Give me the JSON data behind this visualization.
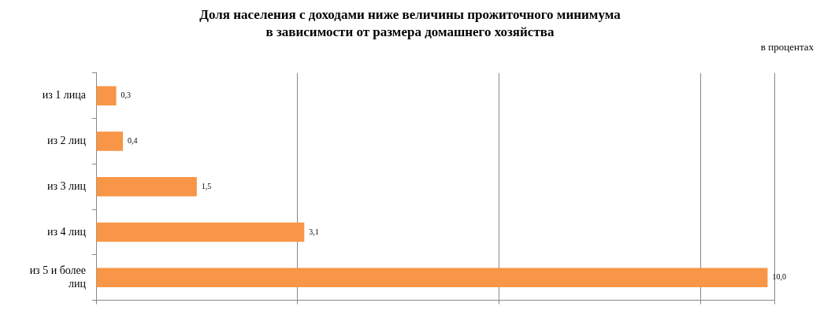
{
  "chart_data": {
    "type": "bar",
    "orientation": "horizontal",
    "title": "Доля населения с доходами ниже величины прожиточного минимума\nв зависимости от размера домашнего хозяйства",
    "annotations": [
      "в процентах"
    ],
    "categories": [
      "из 1 лица",
      "из 2 лиц",
      "из 3 лиц",
      "из 4 лиц",
      "из 5 и более лиц"
    ],
    "values": [
      0.3,
      0.4,
      1.5,
      3.1,
      10.0
    ],
    "value_labels": [
      "0,3",
      "0,4",
      "1,5",
      "3,1",
      "10,0"
    ],
    "color": "#f79646",
    "xlim": [
      0,
      10.1
    ],
    "xticks": [
      {
        "value": 0,
        "label": null
      },
      {
        "value": 3,
        "label": null
      },
      {
        "value": 6,
        "label": null
      },
      {
        "value": 9,
        "label": null
      },
      {
        "value": 10.1,
        "label": null
      }
    ],
    "grid": "x",
    "legend": false,
    "tick_labels": "y"
  }
}
